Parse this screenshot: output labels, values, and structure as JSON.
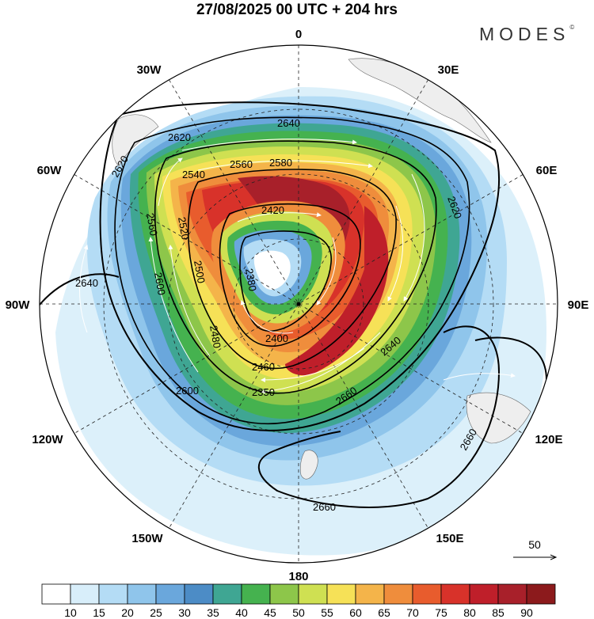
{
  "title": "27/08/2025  00 UTC  + 204 hrs",
  "brand": "MODES",
  "brand_mark": "©",
  "longitude_labels": {
    "top": "0",
    "top_right": "30E",
    "right_upper": "60E",
    "right": "90E",
    "right_lower": "120E",
    "bottom_right": "150E",
    "bottom": "180",
    "bottom_left": "150W",
    "left_lower": "120W",
    "left": "90W",
    "left_upper": "60W",
    "top_left": "30W"
  },
  "contour_labels": [
    "2640",
    "2620",
    "2560",
    "2540",
    "2580",
    "2620",
    "2560",
    "2520",
    "2500",
    "2420",
    "2400",
    "2380",
    "2460",
    "2480",
    "2600",
    "2350",
    "2640",
    "2660",
    "2600",
    "2640",
    "2660",
    "2620",
    "2660"
  ],
  "reference_vector": {
    "value": "50"
  },
  "colorbar": {
    "ticks": [
      "10",
      "15",
      "20",
      "25",
      "30",
      "35",
      "40",
      "45",
      "50",
      "55",
      "60",
      "65",
      "70",
      "75",
      "80",
      "85",
      "90"
    ],
    "colors": [
      "#ffffff",
      "#d8eefa",
      "#b4dcf5",
      "#8fc5eb",
      "#6aa7dc",
      "#4c8cc6",
      "#3fa693",
      "#45b24f",
      "#8dc64a",
      "#cfe052",
      "#f6e157",
      "#f4b44a",
      "#ef8d3c",
      "#e85c2d",
      "#d8322a",
      "#bf1f2a",
      "#a8202a",
      "#8c1a1c"
    ]
  }
}
